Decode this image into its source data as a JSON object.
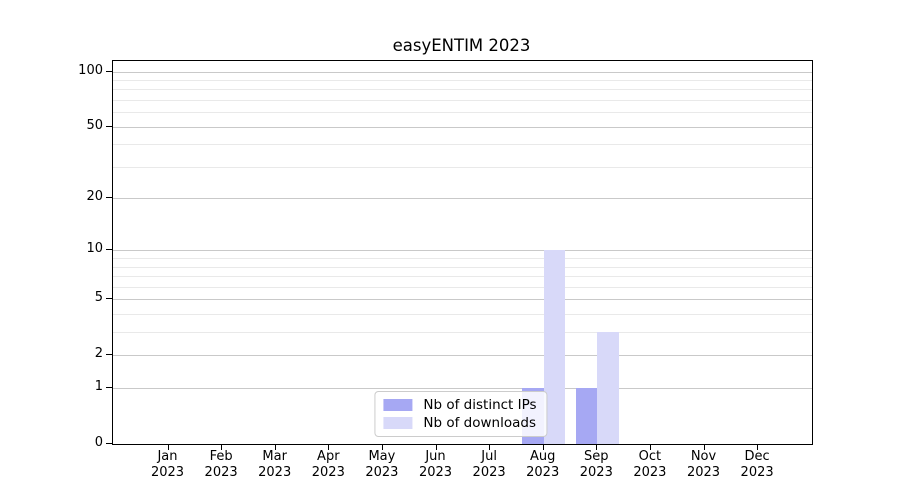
{
  "chart_data": {
    "type": "bar",
    "title": "easyENTIM 2023",
    "categories": [
      "Jan",
      "Feb",
      "Mar",
      "Apr",
      "May",
      "Jun",
      "Jul",
      "Aug",
      "Sep",
      "Oct",
      "Nov",
      "Dec"
    ],
    "x_tick_year": "2023",
    "series": [
      {
        "name": "Nb of distinct IPs",
        "color": "#a6a8f3",
        "values": [
          0,
          0,
          0,
          0,
          0,
          0,
          0,
          1,
          1,
          0,
          0,
          0
        ]
      },
      {
        "name": "Nb of downloads",
        "color": "#d8d9f9",
        "values": [
          0,
          0,
          0,
          0,
          0,
          0,
          0,
          10,
          3,
          0,
          0,
          0
        ]
      }
    ],
    "y_scale": "log1p",
    "ylim": [
      0,
      114
    ],
    "y_major_ticks": [
      0,
      1,
      2,
      5,
      10,
      20,
      50,
      100
    ],
    "y_minor_ticks": [
      3,
      4,
      6,
      7,
      8,
      9,
      30,
      40,
      60,
      70,
      80,
      90
    ],
    "grid": "horizontal",
    "legend_position": "lower center"
  },
  "legend": {
    "items": [
      {
        "label": "Nb of distinct IPs"
      },
      {
        "label": "Nb of downloads"
      }
    ]
  }
}
